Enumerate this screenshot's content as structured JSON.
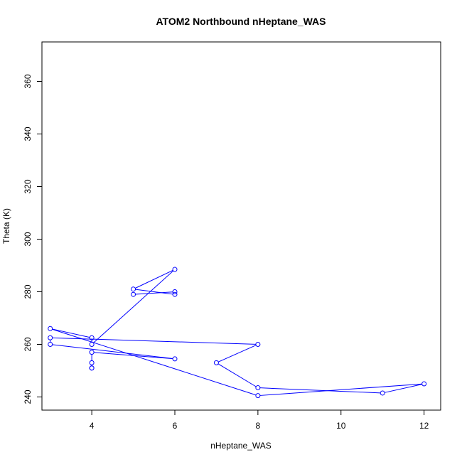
{
  "chart_data": {
    "type": "line",
    "title": "ATOM2 Northbound nHeptane_WAS",
    "xlabel": "nHeptane_WAS",
    "ylabel": "Theta (K)",
    "xlim": [
      2.8,
      12.4
    ],
    "ylim": [
      235,
      375
    ],
    "xticks": [
      "4",
      "6",
      "8",
      "10",
      "12"
    ],
    "yticks": [
      "240",
      "260",
      "280",
      "300",
      "320",
      "340",
      "360"
    ],
    "grid": false,
    "legend": "none",
    "color": "#0000ff",
    "series": [
      {
        "x": [
          4,
          4,
          4,
          4,
          6,
          3,
          3,
          8,
          7,
          8,
          11,
          12,
          8,
          3,
          4,
          4,
          6,
          5,
          6,
          6,
          5
        ],
        "y": [
          251,
          251,
          253,
          257,
          254.5,
          260,
          262.5,
          260,
          253,
          243.5,
          241.5,
          245,
          240.5,
          266,
          262.5,
          260,
          288.5,
          281,
          279,
          280,
          279
        ]
      }
    ]
  }
}
